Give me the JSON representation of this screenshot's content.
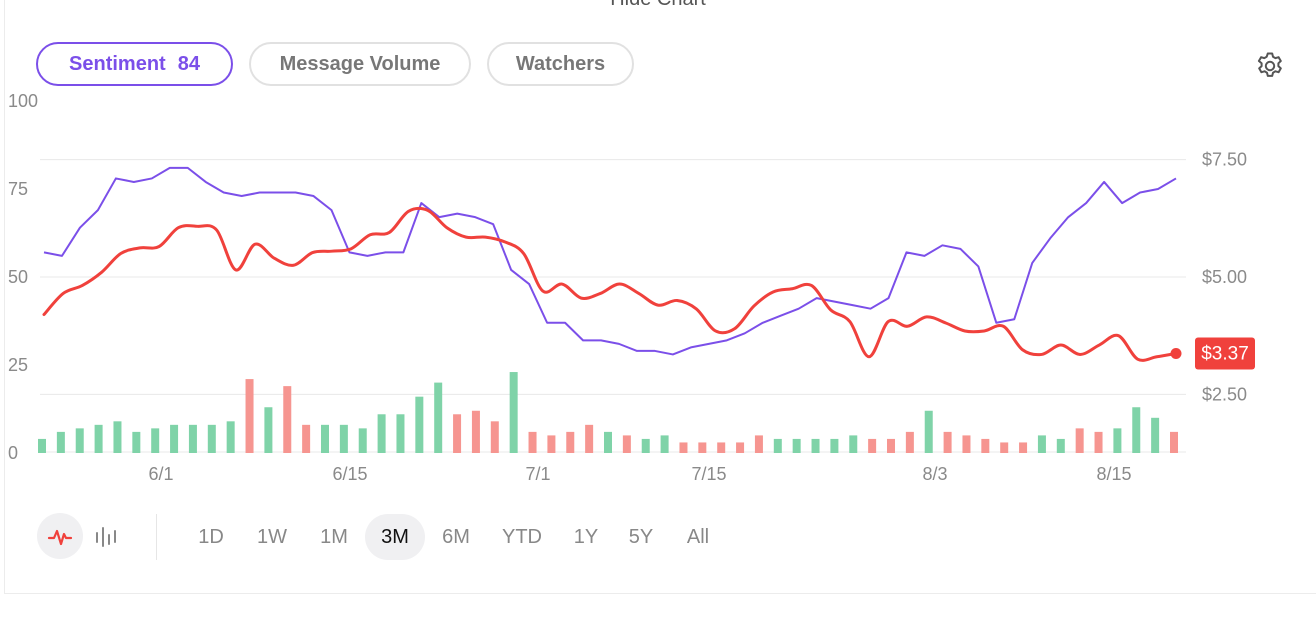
{
  "header": {
    "hide_chart_label": "Hide Chart"
  },
  "tabs": [
    {
      "label": "Sentiment",
      "value": "84",
      "active": true
    },
    {
      "label": "Message Volume",
      "active": false
    },
    {
      "label": "Watchers",
      "active": false
    }
  ],
  "colors": {
    "sentiment": "#7b4fe9",
    "price": "#f0413c",
    "volume_up": "#7fd3a8",
    "volume_down": "#f69590",
    "grid": "#e8e8e8"
  },
  "icons": {
    "settings": "gear-icon",
    "line_mode": "line-chart-icon",
    "bar_mode": "bar-chart-icon"
  },
  "chart_data": {
    "type": "line",
    "x_tick_labels": [
      "6/1",
      "6/15",
      "7/1",
      "7/15",
      "8/3",
      "8/15"
    ],
    "left_axis": {
      "ticks": [
        "100",
        "75",
        "50",
        "25",
        "0"
      ],
      "ylim": [
        0,
        100
      ]
    },
    "right_axis": {
      "ticks": [
        "$7.50",
        "$5.00",
        "$2.50"
      ],
      "ylim": [
        1.25,
        8.75
      ]
    },
    "current_price_label": "$3.37",
    "grid": true,
    "series": [
      {
        "axis": "left",
        "values": [
          57,
          56,
          64,
          69,
          78,
          77,
          78,
          81,
          81,
          77,
          74,
          73,
          74,
          74,
          74,
          73,
          69,
          57,
          56,
          57,
          57,
          71,
          67,
          68,
          67,
          65,
          52,
          48,
          37,
          37,
          32,
          32,
          31,
          29,
          29,
          28,
          30,
          31,
          32,
          34,
          37,
          39,
          41,
          44,
          43,
          42,
          41,
          44,
          57,
          56,
          59,
          58,
          53,
          37,
          38,
          54,
          61,
          67,
          71,
          77,
          71,
          74,
          75,
          78
        ]
      },
      {
        "axis": "right",
        "values": [
          4.2,
          4.65,
          4.82,
          5.1,
          5.5,
          5.62,
          5.65,
          6.05,
          6.08,
          6.0,
          5.15,
          5.7,
          5.4,
          5.25,
          5.52,
          5.55,
          5.6,
          5.9,
          5.95,
          6.4,
          6.42,
          6.05,
          5.85,
          5.85,
          5.75,
          5.5,
          4.7,
          4.85,
          4.55,
          4.65,
          4.85,
          4.65,
          4.4,
          4.5,
          4.32,
          3.85,
          3.9,
          4.38,
          4.68,
          4.75,
          4.82,
          4.3,
          4.05,
          3.3,
          4.05,
          3.95,
          4.15,
          4.02,
          3.85,
          3.85,
          3.95,
          3.45,
          3.35,
          3.55,
          3.35,
          3.55,
          3.75,
          3.25,
          3.3,
          3.37
        ]
      },
      {
        "type": "bar",
        "axis": "left",
        "values": [
          4,
          6,
          7,
          8,
          9,
          6,
          7,
          8,
          8,
          8,
          9,
          21,
          13,
          19,
          8,
          8,
          8,
          7,
          11,
          11,
          16,
          20,
          11,
          12,
          9,
          23,
          6,
          5,
          6,
          8,
          6,
          5,
          4,
          5,
          3,
          3,
          3,
          3,
          5,
          4,
          4,
          4,
          4,
          5,
          4,
          4,
          6,
          12,
          6,
          5,
          4,
          3,
          3,
          5,
          4,
          7,
          6,
          7,
          13,
          10,
          6
        ],
        "direction": [
          "up",
          "up",
          "up",
          "up",
          "up",
          "up",
          "up",
          "up",
          "up",
          "up",
          "up",
          "down",
          "up",
          "down",
          "down",
          "up",
          "up",
          "up",
          "up",
          "up",
          "up",
          "up",
          "down",
          "down",
          "down",
          "up",
          "down",
          "down",
          "down",
          "down",
          "up",
          "down",
          "up",
          "up",
          "down",
          "down",
          "down",
          "down",
          "down",
          "up",
          "up",
          "up",
          "up",
          "up",
          "down",
          "down",
          "down",
          "up",
          "down",
          "down",
          "down",
          "down",
          "down",
          "up",
          "up",
          "down",
          "down",
          "up",
          "up",
          "up",
          "down"
        ]
      }
    ]
  },
  "controls": {
    "ranges": [
      "1D",
      "1W",
      "1M",
      "3M",
      "6M",
      "YTD",
      "1Y",
      "5Y",
      "All"
    ],
    "active_range": "3M",
    "active_mode": "line"
  }
}
